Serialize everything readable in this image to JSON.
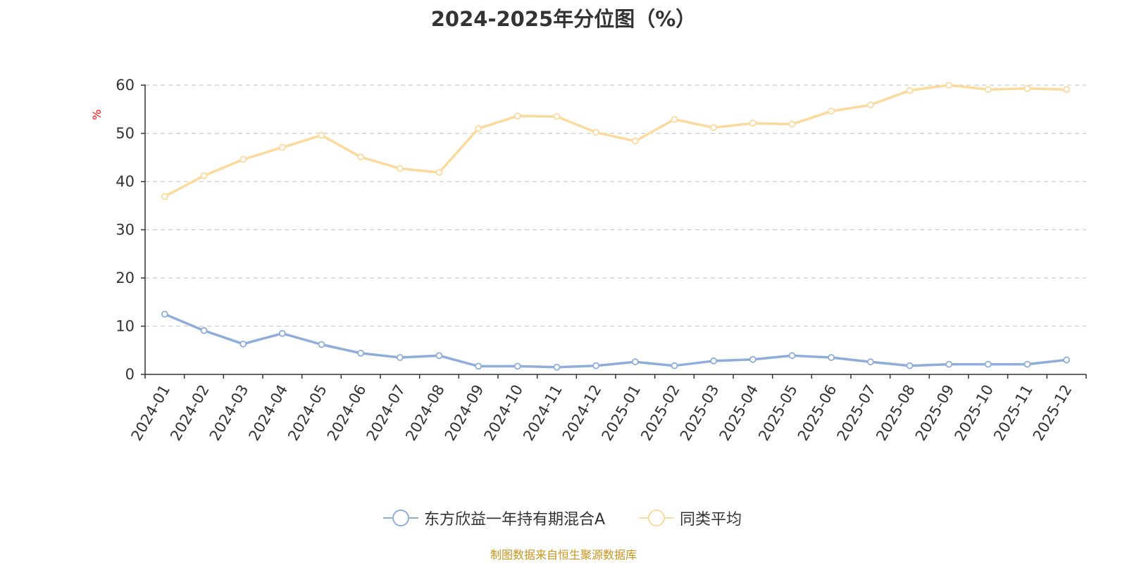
{
  "chart_data": {
    "type": "line",
    "title": "2024-2025年分位图（%）",
    "ylabel": "%",
    "xlabel": "",
    "ylim": [
      0,
      60
    ],
    "yticks": [
      0,
      10,
      20,
      30,
      40,
      50,
      60
    ],
    "grid": "horizontal dashed",
    "legend_position": "bottom-center",
    "categories": [
      "2024-01",
      "2024-02",
      "2024-03",
      "2024-04",
      "2024-05",
      "2024-06",
      "2024-07",
      "2024-08",
      "2024-09",
      "2024-10",
      "2024-11",
      "2024-12",
      "2025-01",
      "2025-02",
      "2025-03",
      "2025-04",
      "2025-05",
      "2025-06",
      "2025-07",
      "2025-08",
      "2025-09",
      "2025-10",
      "2025-11",
      "2025-12"
    ],
    "series": [
      {
        "name": "东方欣益一年持有期混合A",
        "color": "#8eaddb",
        "values": [
          12.5,
          9.1,
          6.3,
          8.5,
          6.2,
          4.4,
          3.5,
          3.9,
          1.7,
          1.7,
          1.5,
          1.8,
          2.6,
          1.8,
          2.8,
          3.1,
          3.9,
          3.5,
          2.6,
          1.8,
          2.1,
          2.1,
          2.1,
          3.0
        ]
      },
      {
        "name": "同类平均",
        "color": "#fcd99c",
        "values": [
          36.9,
          41.2,
          44.6,
          47.1,
          49.6,
          45.1,
          42.7,
          41.9,
          51.0,
          53.6,
          53.5,
          50.2,
          48.4,
          52.9,
          51.2,
          52.1,
          51.9,
          54.6,
          55.9,
          58.9,
          60.0,
          59.1,
          59.3,
          59.1
        ]
      }
    ]
  },
  "footer": {
    "source_note": "制图数据来自恒生聚源数据库",
    "source_color": "#c9951c"
  },
  "colors": {
    "axis": "#333333",
    "grid": "#cccccc",
    "ylabel": "#ff0000"
  }
}
